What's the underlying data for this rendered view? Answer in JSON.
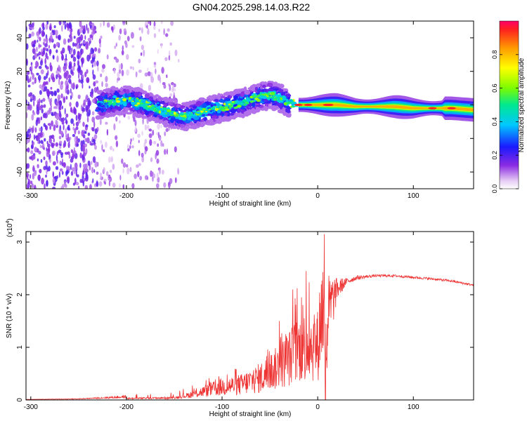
{
  "title": "GN04.2025.298.14.03.R22",
  "chart_data": [
    {
      "type": "heatmap",
      "name": "spectrogram",
      "xlabel": "Height of straight line (km)",
      "ylabel": "Frequency (Hz)",
      "xlim": [
        -305,
        163
      ],
      "ylim": [
        -50,
        50
      ],
      "xticks": [
        -300,
        -200,
        -100,
        0,
        100
      ],
      "yticks": [
        -40,
        -20,
        0,
        20,
        40
      ],
      "ridge": {
        "x": [
          -230,
          -215,
          -200,
          -185,
          -170,
          -155,
          -140,
          -125,
          -110,
          -95,
          -80,
          -70,
          -60,
          -50,
          -40,
          -30,
          -20,
          -10,
          0,
          20,
          40,
          60,
          80,
          100,
          120,
          140,
          163
        ],
        "y": [
          0,
          2,
          3,
          1,
          -2,
          -5,
          -7,
          -5,
          -3,
          -1,
          1,
          3,
          5,
          6,
          4,
          1,
          0,
          0,
          0,
          0,
          -1,
          -1,
          -1,
          -2,
          -2,
          -2,
          -3
        ]
      },
      "noisy_region_x": [
        -305,
        -145
      ],
      "colorbar": {
        "label": "Normalized spectral amplitude",
        "ticks": [
          "0.0",
          "0.2",
          "0.4",
          "0.6",
          "0.8"
        ],
        "range": [
          0,
          1
        ]
      }
    },
    {
      "type": "line",
      "name": "snr",
      "xlabel": "Height of straight line (km)",
      "ylabel": "SNR (10 * v/v)",
      "multiplier_label": "(x10",
      "multiplier_exp": "4",
      "multiplier_close": ")",
      "xlim": [
        -305,
        163
      ],
      "ylim": [
        0,
        3.2
      ],
      "xticks": [
        -300,
        -200,
        -100,
        0,
        100
      ],
      "yticks": [
        0,
        1,
        2,
        3
      ],
      "color": "#ee3333",
      "envelope_x": [
        -305,
        -250,
        -200,
        -150,
        -120,
        -100,
        -80,
        -60,
        -40,
        -30,
        -20,
        -10,
        0,
        5,
        10,
        20,
        30,
        40,
        60,
        80,
        100,
        120,
        140,
        163
      ],
      "envelope_y": [
        0.01,
        0.02,
        0.06,
        0.08,
        0.2,
        0.3,
        0.35,
        0.5,
        0.8,
        1.0,
        1.3,
        1.4,
        1.3,
        2.6,
        1.6,
        2.1,
        2.25,
        2.32,
        2.36,
        2.36,
        2.33,
        2.3,
        2.26,
        2.18
      ],
      "noise_fraction": [
        0.2,
        0.3,
        0.5,
        0.6,
        1.2,
        1.3,
        1.3,
        1.3,
        1.2,
        1.2,
        1.1,
        1.1,
        1.2,
        1.0,
        0.5,
        0.1,
        0.03,
        0.02,
        0.01,
        0.01,
        0.01,
        0.01,
        0.01,
        0.01
      ],
      "spikes": [
        {
          "x": 7,
          "y": 3.15
        },
        {
          "x": -12,
          "y": 2.45
        },
        {
          "x": -26,
          "y": 2.1
        },
        {
          "x": -17,
          "y": 1.95
        },
        {
          "x": -40,
          "y": 1.5
        }
      ],
      "dropout_x": 8
    }
  ]
}
